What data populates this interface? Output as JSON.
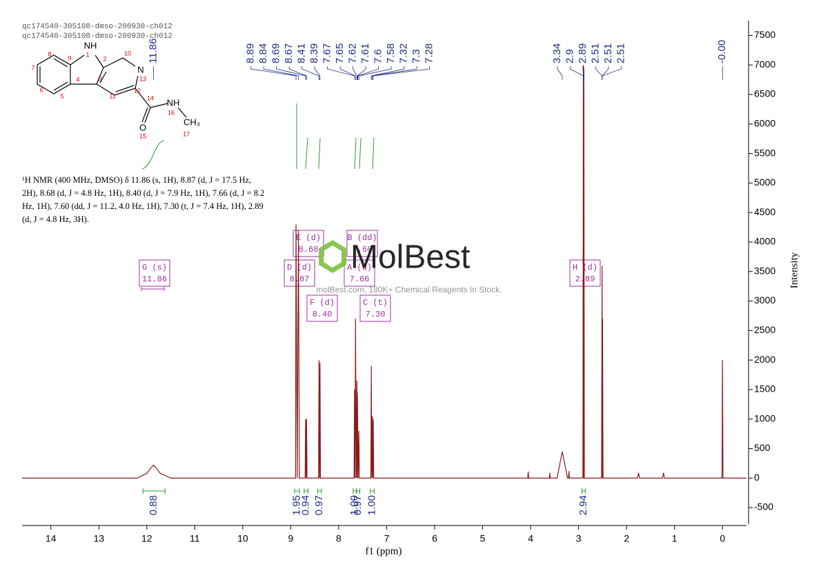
{
  "header": {
    "lines": [
      "qc174540-305108-dmso-200930-ch012",
      "qc174540-305108-dmso-200930-ch012"
    ]
  },
  "molecule": {
    "labels": [
      "NH",
      "1",
      "2",
      "10",
      "N",
      "13",
      "12",
      "11",
      "3",
      "4",
      "9",
      "8",
      "7",
      "6",
      "5",
      "14",
      "NH",
      "16",
      "CH₃",
      "17",
      "O",
      "15"
    ]
  },
  "description": {
    "lines": [
      "¹H NMR (400 MHz, DMSO) δ 11.86 (s, 1H), 8.87 (d, J = 17.5 Hz,",
      "2H), 8.68 (d, J = 4.8 Hz, 1H), 8.40 (d, J = 7.9 Hz, 1H), 7.66 (d, J = 8.2",
      "Hz, 1H), 7.60 (dd, J = 11.2, 4.0 Hz, 1H), 7.30 (t, J = 7.4 Hz, 1H), 2.89",
      "(d, J = 4.8 Hz, 3H)."
    ]
  },
  "watermark": {
    "brand": "MolBest",
    "tagline": "molBest.com, 180K+ Chemical Reagents In Stock."
  },
  "chart_data": {
    "type": "line",
    "x_label": "f1 (ppm)",
    "y_label": "Intensity",
    "x": [
      14.6,
      12.2,
      12.0,
      11.92,
      11.86,
      11.8,
      11.72,
      11.5,
      9.0,
      8.9,
      8.89,
      8.865,
      8.84,
      8.82,
      8.7,
      8.69,
      8.68,
      8.67,
      8.66,
      8.42,
      8.41,
      8.4,
      8.39,
      8.38,
      7.68,
      7.67,
      7.66,
      7.65,
      7.635,
      7.62,
      7.615,
      7.61,
      7.595,
      7.58,
      7.57,
      7.33,
      7.32,
      7.31,
      7.3,
      7.29,
      7.28,
      7.27,
      4.06,
      4.05,
      4.04,
      3.61,
      3.6,
      3.59,
      3.45,
      3.34,
      3.23,
      3.21,
      3.2,
      3.19,
      2.91,
      2.9,
      2.895,
      2.89,
      2.88,
      2.52,
      2.51,
      2.505,
      2.5,
      2.49,
      1.77,
      1.75,
      1.73,
      1.25,
      1.23,
      1.21,
      0.01,
      0,
      -0.01,
      -0.5
    ],
    "series": [
      {
        "color": "#8b1a1a",
        "values": [
          0,
          0,
          80,
          170,
          220,
          170,
          80,
          0,
          0,
          0,
          4300,
          0,
          4200,
          0,
          0,
          1000,
          0,
          1000,
          0,
          0,
          2000,
          0,
          1950,
          0,
          0,
          1500,
          0,
          2700,
          0,
          1650,
          0,
          1450,
          0,
          800,
          0,
          0,
          1900,
          0,
          1050,
          0,
          1000,
          0,
          0,
          110,
          0,
          0,
          90,
          0,
          0,
          450,
          0,
          0,
          120,
          0,
          0,
          7000,
          0,
          6950,
          0,
          0,
          3600,
          0,
          2700,
          0,
          0,
          90,
          0,
          0,
          90,
          0,
          0,
          2000,
          0,
          0
        ]
      }
    ],
    "xlim": [
      14.6,
      -0.5
    ],
    "ylim": [
      7750,
      -780
    ],
    "xticks": [
      14,
      13,
      12,
      11,
      10,
      9,
      8,
      7,
      6,
      5,
      4,
      3,
      2,
      1,
      0
    ],
    "yticks": [
      7500,
      7000,
      6500,
      6000,
      5500,
      5000,
      4500,
      4000,
      3500,
      3000,
      2500,
      2000,
      1500,
      1000,
      500,
      0,
      -500
    ],
    "peak_labels": [
      11.86,
      8.89,
      8.84,
      8.69,
      8.67,
      8.41,
      8.39,
      7.67,
      7.65,
      7.62,
      7.61,
      7.6,
      7.58,
      7.32,
      7.3,
      7.28,
      3.34,
      2.9,
      2.89,
      2.51,
      2.51,
      2.51,
      {
        "value": 0,
        "label": "-0.00"
      }
    ],
    "integrals": [
      {
        "from": 12.08,
        "to": 11.62,
        "label": "0.88"
      },
      {
        "from": 8.92,
        "to": 8.82,
        "label": "1.95"
      },
      {
        "from": 8.72,
        "to": 8.64,
        "label": "0.94"
      },
      {
        "from": 8.44,
        "to": 8.36,
        "label": "0.97"
      },
      {
        "from": 7.7,
        "to": 7.63,
        "label": "1.00"
      },
      {
        "from": 7.63,
        "to": 7.56,
        "label": "0.97"
      },
      {
        "from": 7.34,
        "to": 7.26,
        "label": "1.00"
      },
      {
        "from": 2.93,
        "to": 2.86,
        "label": "2.94"
      }
    ],
    "multiplets": [
      {
        "name": "G (s)",
        "shift": "11.86"
      },
      {
        "name": "D (d)",
        "shift": "8.87"
      },
      {
        "name": "E (d)",
        "shift": "8.68"
      },
      {
        "name": "F (d)",
        "shift": "8.40"
      },
      {
        "name": "B (dd)",
        "shift": "7.60"
      },
      {
        "name": "A (d)",
        "shift": "7.66"
      },
      {
        "name": "C (t)",
        "shift": "7.30"
      },
      {
        "name": "H (d)",
        "shift": "2.89"
      }
    ]
  }
}
